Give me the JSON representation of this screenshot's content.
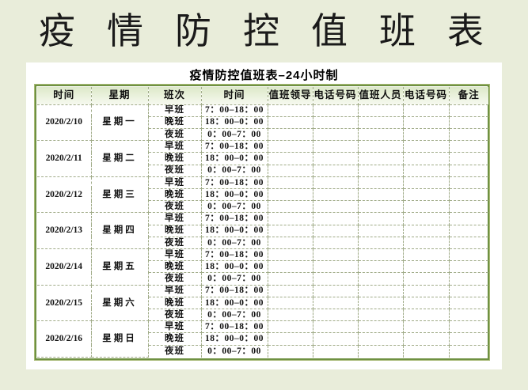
{
  "page": {
    "title": "疫情防控值班表"
  },
  "panel": {
    "title": "疫情防控值班表–24小时制"
  },
  "table": {
    "headers": [
      "时间",
      "星期",
      "班次",
      "时间",
      "值班领导",
      "电话号码",
      "值班人员",
      "电话号码",
      "备注"
    ],
    "shifts": [
      {
        "name": "早班",
        "time": "7：00–18：00"
      },
      {
        "name": "晚班",
        "time": "18：00–0：00"
      },
      {
        "name": "夜班",
        "time": "0：00–7：00"
      }
    ],
    "days": [
      {
        "date": "2020/2/10",
        "weekday": "星期一"
      },
      {
        "date": "2020/2/11",
        "weekday": "星期二"
      },
      {
        "date": "2020/2/12",
        "weekday": "星期三"
      },
      {
        "date": "2020/2/13",
        "weekday": "星期四"
      },
      {
        "date": "2020/2/14",
        "weekday": "星期五"
      },
      {
        "date": "2020/2/15",
        "weekday": "星期六"
      },
      {
        "date": "2020/2/16",
        "weekday": "星期日"
      }
    ],
    "empty_cell": ""
  },
  "colors": {
    "page_background": "#e9edda",
    "panel_background": "#ffffff",
    "table_border": "#6f9142",
    "table_border_light": "#a8ba76",
    "cell_border": "#a0ab88",
    "header_gradient_top": "#dde9c9",
    "header_gradient_bottom": "#f6f9ef",
    "text": "#111111"
  }
}
